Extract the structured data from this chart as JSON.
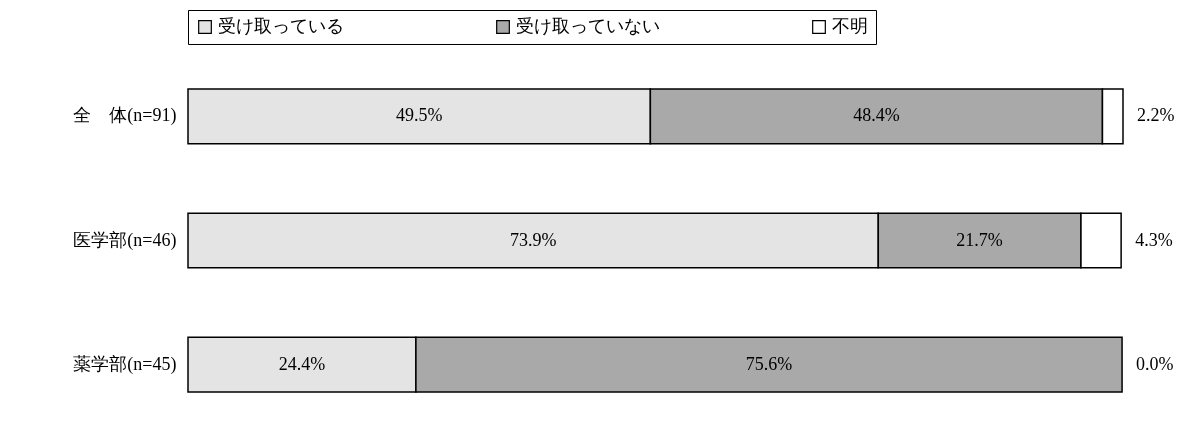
{
  "chart_data": {
    "type": "bar",
    "orientation": "horizontal",
    "stacked": true,
    "legend": "top",
    "tick_labels": "y",
    "grid": false,
    "categories": [
      "全　体(n=91)",
      "医学部(n=46)",
      "薬学部(n=45)"
    ],
    "series": [
      {
        "name": "受け取っている",
        "color": "#e4e4e4",
        "values": [
          49.5,
          73.9,
          24.4
        ],
        "value_labels": [
          "49.5%",
          "73.9%",
          "24.4%"
        ]
      },
      {
        "name": "受け取っていない",
        "color": "#a9a9a9",
        "values": [
          48.4,
          21.7,
          75.6
        ],
        "value_labels": [
          "48.4%",
          "21.7%",
          "75.6%"
        ]
      },
      {
        "name": "不明",
        "color": "#ffffff",
        "values": [
          2.2,
          4.3,
          0.0
        ],
        "value_labels": [
          "2.2%",
          "4.3%",
          "0.0%"
        ]
      }
    ]
  }
}
